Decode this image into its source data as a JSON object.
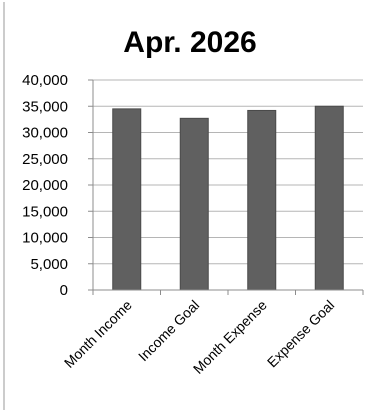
{
  "chart_data": {
    "type": "bar",
    "title": "Apr. 2026",
    "categories": [
      "Month Income",
      "Income Goal",
      "Month Expense",
      "Expense Goal"
    ],
    "values": [
      34500,
      32700,
      34200,
      35000
    ],
    "ylim": [
      0,
      40000
    ],
    "yticks": [
      "0",
      "5,000",
      "10,000",
      "15,000",
      "20,000",
      "25,000",
      "30,000",
      "35,000",
      "40,000"
    ],
    "grid": true,
    "legend": "none",
    "bar_color": "#606060",
    "grid_color": "#b5b5b5",
    "axis_color": "#8c8c8c"
  }
}
